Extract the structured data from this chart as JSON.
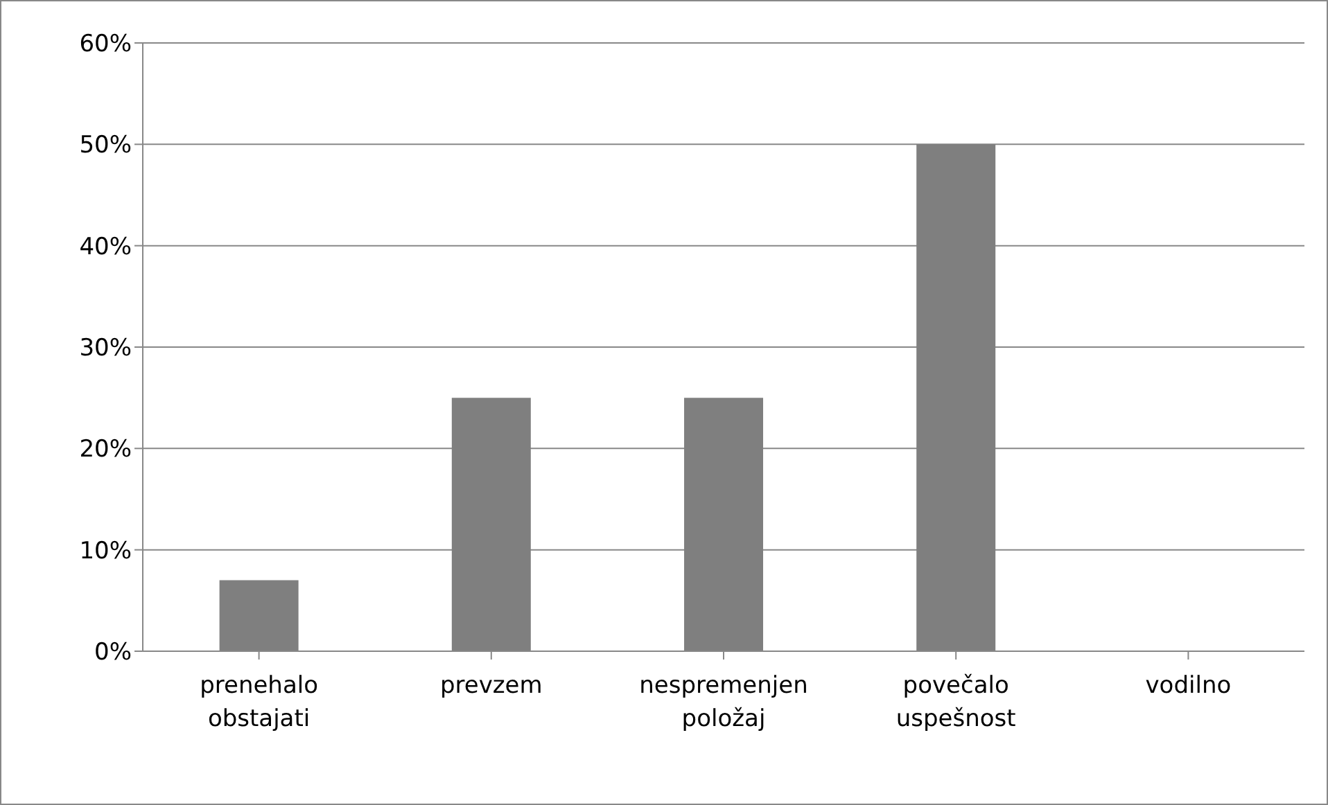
{
  "chart_data": {
    "type": "bar",
    "categories": [
      "prenehalo obstajati",
      "prevzem",
      "nespremenjen položaj",
      "povečalo uspešnost",
      "vodilno"
    ],
    "values": [
      7,
      25,
      25,
      50,
      0
    ],
    "color": "#7f7f7f",
    "ylim": [
      0,
      60
    ],
    "yticks": [
      {
        "value": 0,
        "label": "0%"
      },
      {
        "value": 10,
        "label": "10%"
      },
      {
        "value": 20,
        "label": "20%"
      },
      {
        "value": 30,
        "label": "30%"
      },
      {
        "value": 40,
        "label": "40%"
      },
      {
        "value": 50,
        "label": "50%"
      },
      {
        "value": 60,
        "label": "60%"
      }
    ],
    "grid": "y"
  }
}
